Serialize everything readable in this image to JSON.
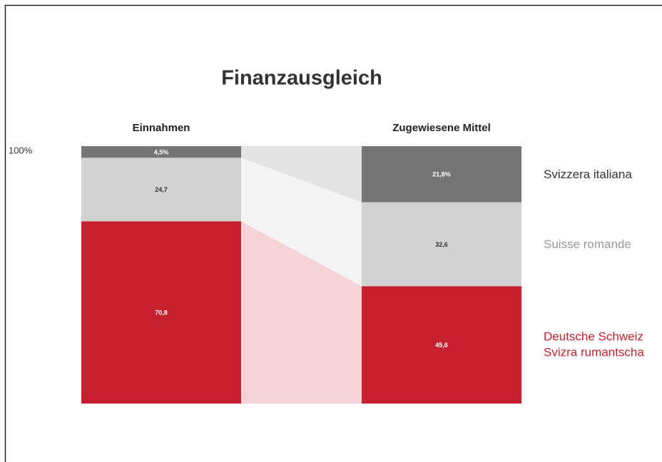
{
  "chart_data": {
    "type": "stacked_bar",
    "title": "Finanzausgleich",
    "categories": [
      "Einnahmen",
      "Zugewiesene Mittel"
    ],
    "series": [
      {
        "name": "Deutsche Schweiz\nSvizra rumantscha",
        "color": "#c8202e",
        "link_color": "#f5d3d7",
        "label_color": "#c8202e",
        "value_text_color": "#ffffff",
        "values": [
          70.8,
          45.6
        ],
        "value_labels": [
          "70,8",
          "45,6"
        ]
      },
      {
        "name": "Suisse romande",
        "color": "#d2d2d2",
        "link_color": "#f4f4f4",
        "label_color": "#999999",
        "value_text_color": "#333333",
        "values": [
          24.7,
          32.6
        ],
        "value_labels": [
          "24,7",
          "32,6"
        ]
      },
      {
        "name": "Svizzera italiana",
        "color": "#757575",
        "link_color": "#e3e3e3",
        "label_color": "#333333",
        "value_text_color": "#ffffff",
        "values": [
          4.5,
          21.8
        ],
        "value_labels": [
          "4,5%",
          "21,8%"
        ]
      }
    ],
    "ylim": [
      0,
      100
    ],
    "yticks": [
      {
        "value": 100,
        "label": "100%"
      }
    ]
  }
}
